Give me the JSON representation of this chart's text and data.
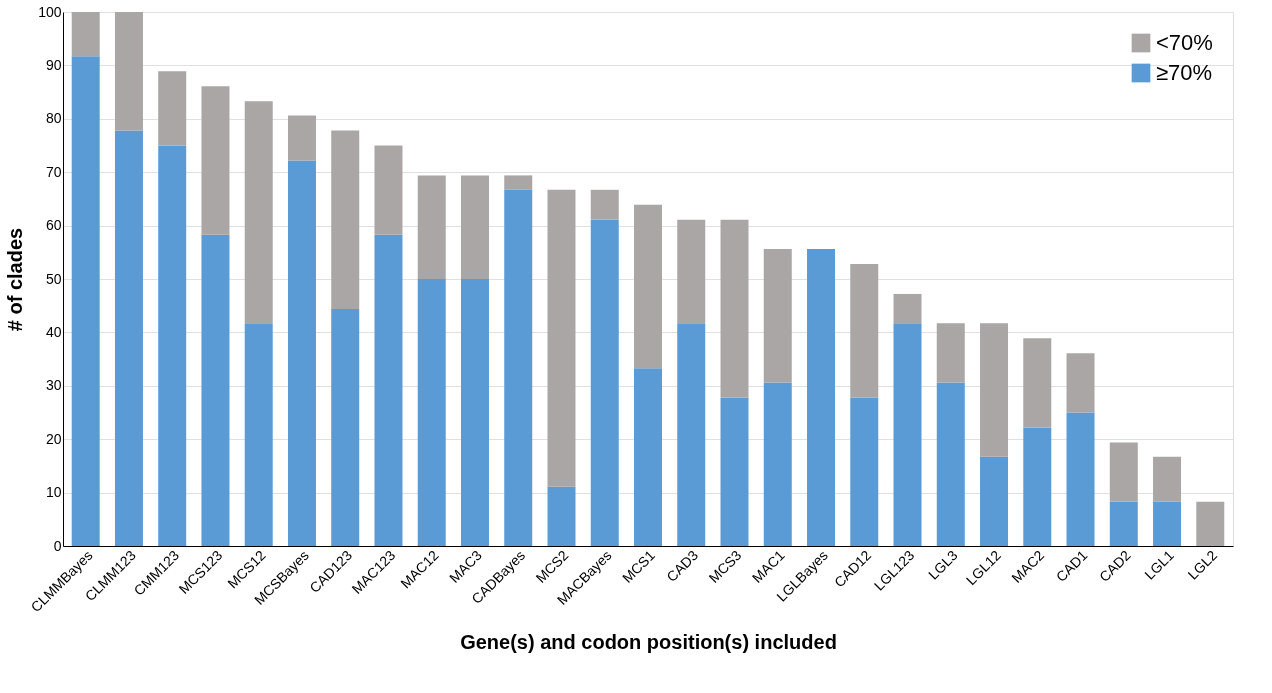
{
  "chart_data": {
    "type": "bar",
    "stacked": true,
    "xlabel": "Gene(s) and codon position(s) included",
    "ylabel": "# of clades",
    "categories": [
      "CLMMBayes",
      "CLMM123",
      "CMM123",
      "MCS123",
      "MCS12",
      "MCSBayes",
      "CAD123",
      "MAC123",
      "MAC12",
      "MAC3",
      "CADBayes",
      "MCS2",
      "MACBayes",
      "MCS1",
      "CAD3",
      "MCS3",
      "MAC1",
      "LGLBayes",
      "CAD12",
      "LGL123",
      "LGL3",
      "LGL12",
      "MAC2",
      "CAD1",
      "CAD2",
      "LGL1",
      "LGL2"
    ],
    "series": [
      {
        "name": "≥70%",
        "color": "#5b9bd5",
        "values": [
          91.7,
          77.8,
          75,
          58.3,
          41.7,
          72.2,
          44.4,
          58.3,
          50,
          50,
          66.7,
          11.1,
          61.1,
          33.3,
          41.7,
          27.8,
          30.6,
          55.6,
          27.8,
          41.7,
          30.6,
          16.7,
          22.2,
          25,
          8.3,
          8.3,
          0
        ]
      },
      {
        "name": "<70%",
        "color": "#aaa6a6",
        "values": [
          8.3,
          22.2,
          13.9,
          27.8,
          41.6,
          8.4,
          33.4,
          16.7,
          19.4,
          19.4,
          2.7,
          55.6,
          5.6,
          30.6,
          19.4,
          33.3,
          25,
          0,
          25,
          5.5,
          11.1,
          25,
          16.7,
          11.1,
          11.1,
          8.4,
          8.3
        ]
      }
    ],
    "ylim": [
      0,
      100
    ],
    "yticks": [
      0,
      10,
      20,
      30,
      40,
      50,
      60,
      70,
      80,
      90,
      100
    ],
    "grid": "y",
    "legend": "top right"
  }
}
